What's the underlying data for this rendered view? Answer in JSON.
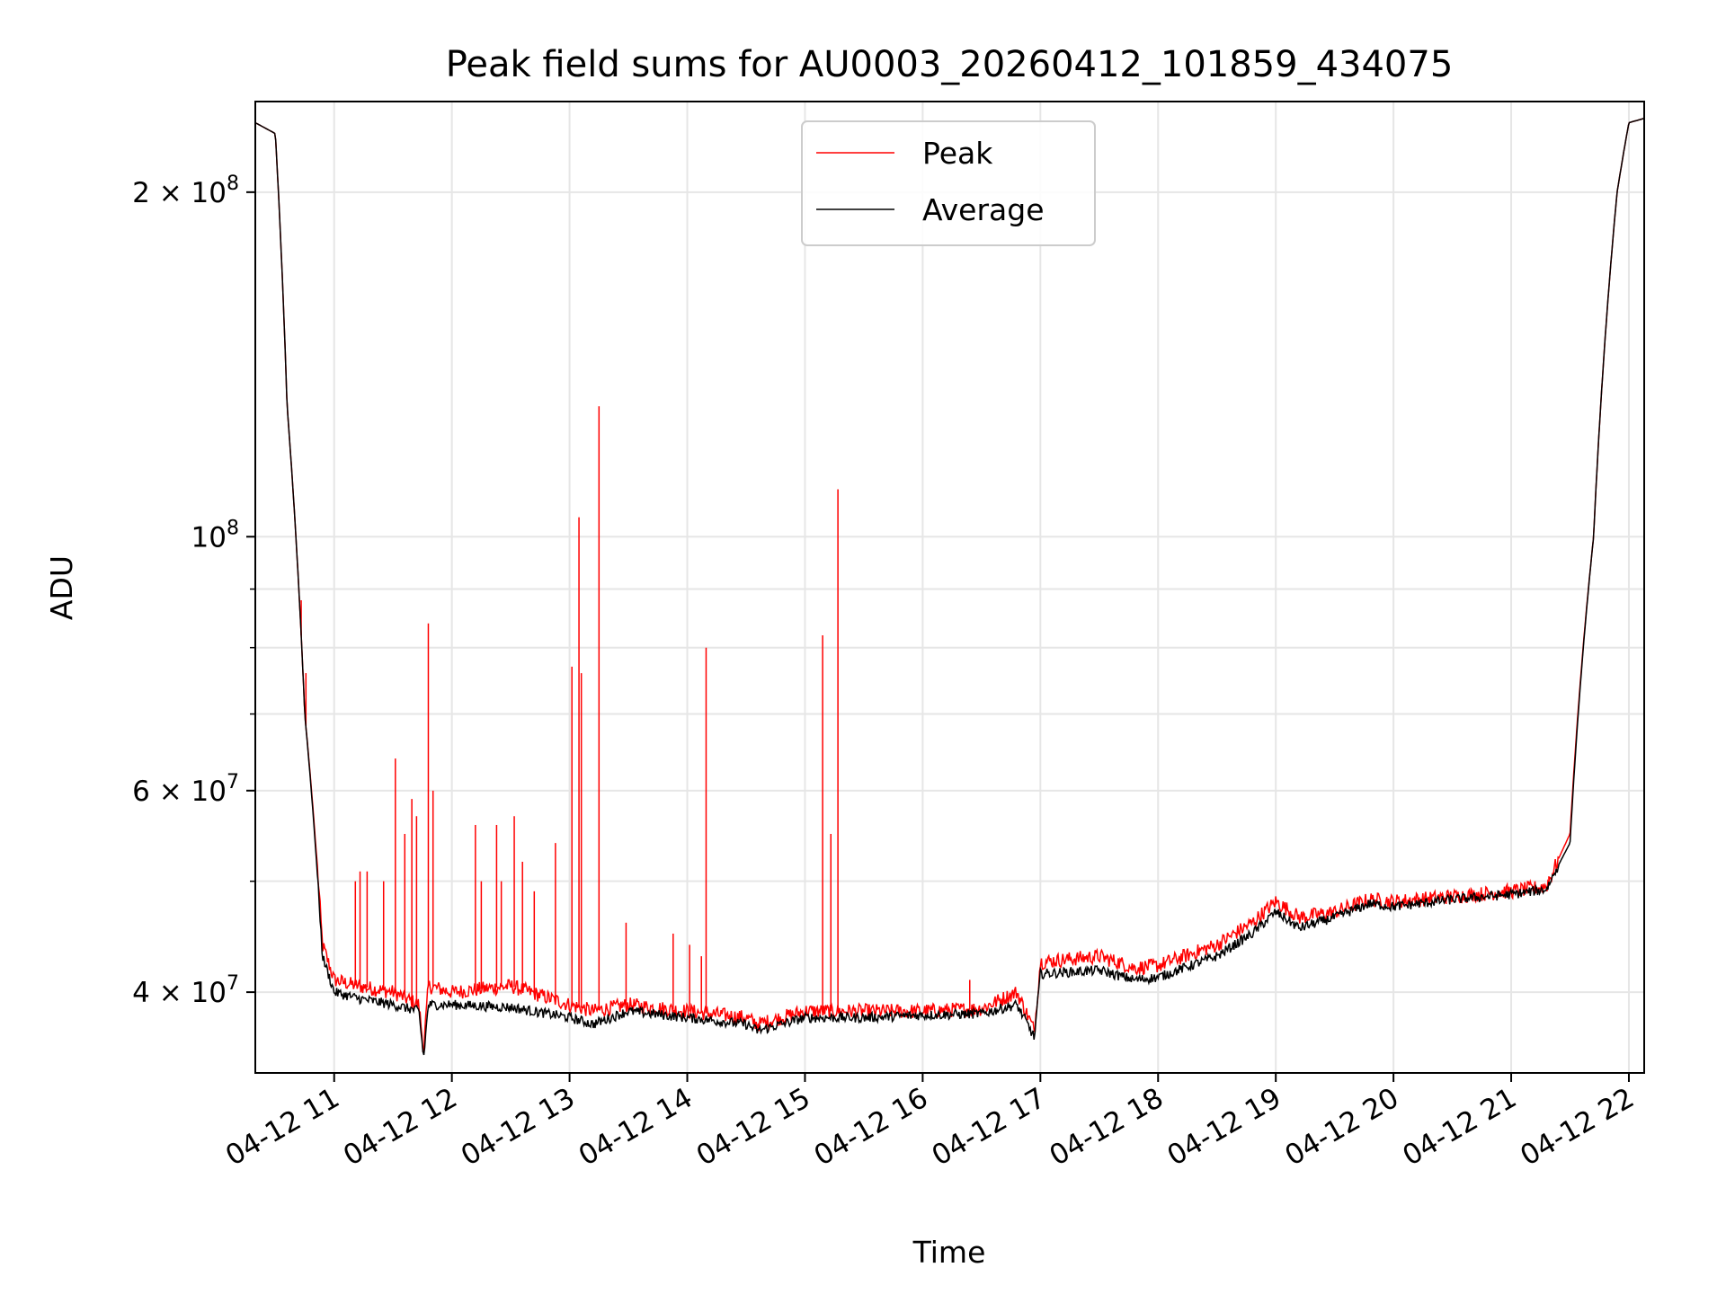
{
  "chart_data": {
    "type": "line",
    "title": "Peak field sums for AU0003_20260412_101859_434075",
    "xlabel": "Time",
    "ylabel": "ADU",
    "yscale": "log",
    "ylim": [
      34000000,
      240000000
    ],
    "xlim": [
      10.33,
      22.13
    ],
    "grid": true,
    "legend_position": "upper center",
    "x_ticks": [
      {
        "value": 11,
        "label": "04-12 11"
      },
      {
        "value": 12,
        "label": "04-12 12"
      },
      {
        "value": 13,
        "label": "04-12 13"
      },
      {
        "value": 14,
        "label": "04-12 14"
      },
      {
        "value": 15,
        "label": "04-12 15"
      },
      {
        "value": 16,
        "label": "04-12 16"
      },
      {
        "value": 17,
        "label": "04-12 17"
      },
      {
        "value": 18,
        "label": "04-12 18"
      },
      {
        "value": 19,
        "label": "04-12 19"
      },
      {
        "value": 20,
        "label": "04-12 20"
      },
      {
        "value": 21,
        "label": "04-12 21"
      },
      {
        "value": 22,
        "label": "04-12 22"
      }
    ],
    "y_major_ticks": [
      {
        "value": 40000000,
        "mantissa": "4",
        "times": "×",
        "base": "10",
        "exp": "7"
      },
      {
        "value": 60000000,
        "mantissa": "6",
        "times": "×",
        "base": "10",
        "exp": "7"
      },
      {
        "value": 100000000,
        "mantissa": "",
        "times": "",
        "base": "10",
        "exp": "8"
      },
      {
        "value": 200000000,
        "mantissa": "2",
        "times": "×",
        "base": "10",
        "exp": "8"
      }
    ],
    "y_minor_ticks": [
      50000000,
      70000000,
      80000000,
      90000000
    ],
    "series": [
      {
        "name": "Peak",
        "color": "#ff0000",
        "x": [
          10.33,
          10.5,
          10.6,
          10.75,
          10.9,
          11.0,
          11.2,
          11.5,
          11.72,
          11.76,
          11.8,
          12.0,
          12.5,
          13.0,
          13.2,
          13.5,
          14.0,
          14.5,
          14.6,
          15.0,
          15.5,
          16.0,
          16.5,
          16.8,
          16.95,
          17.0,
          17.5,
          17.8,
          18.0,
          18.5,
          18.8,
          19.0,
          19.2,
          19.5,
          19.8,
          20.0,
          20.5,
          21.0,
          21.3,
          21.5,
          21.7,
          21.9,
          22.0,
          22.13
        ],
        "y": [
          230000000,
          225000000,
          130000000,
          70000000,
          44000000,
          41000000,
          40500000,
          40000000,
          39000000,
          35500000,
          40500000,
          40000000,
          40500000,
          39000000,
          38500000,
          39000000,
          38500000,
          38000000,
          37500000,
          38500000,
          38500000,
          38500000,
          38700000,
          40000000,
          37000000,
          42500000,
          43000000,
          42000000,
          42200000,
          44000000,
          46000000,
          48000000,
          46500000,
          47000000,
          48200000,
          48000000,
          48500000,
          49000000,
          49500000,
          55000000,
          100000000,
          200000000,
          230000000,
          232000000
        ],
        "spikes": [
          {
            "x": 10.72,
            "y": 88000000
          },
          {
            "x": 10.76,
            "y": 76000000
          },
          {
            "x": 11.18,
            "y": 50000000
          },
          {
            "x": 11.22,
            "y": 51000000
          },
          {
            "x": 11.28,
            "y": 51000000
          },
          {
            "x": 11.42,
            "y": 50000000
          },
          {
            "x": 11.52,
            "y": 64000000
          },
          {
            "x": 11.6,
            "y": 55000000
          },
          {
            "x": 11.66,
            "y": 59000000
          },
          {
            "x": 11.7,
            "y": 57000000
          },
          {
            "x": 11.8,
            "y": 84000000
          },
          {
            "x": 11.84,
            "y": 60000000
          },
          {
            "x": 12.2,
            "y": 56000000
          },
          {
            "x": 12.25,
            "y": 50000000
          },
          {
            "x": 12.38,
            "y": 56000000
          },
          {
            "x": 12.42,
            "y": 50000000
          },
          {
            "x": 12.53,
            "y": 57000000
          },
          {
            "x": 12.6,
            "y": 52000000
          },
          {
            "x": 12.7,
            "y": 49000000
          },
          {
            "x": 12.88,
            "y": 54000000
          },
          {
            "x": 13.02,
            "y": 77000000
          },
          {
            "x": 13.08,
            "y": 104000000
          },
          {
            "x": 13.1,
            "y": 76000000
          },
          {
            "x": 13.25,
            "y": 130000000
          },
          {
            "x": 13.48,
            "y": 46000000
          },
          {
            "x": 13.88,
            "y": 45000000
          },
          {
            "x": 14.02,
            "y": 44000000
          },
          {
            "x": 14.12,
            "y": 43000000
          },
          {
            "x": 14.16,
            "y": 80000000
          },
          {
            "x": 15.15,
            "y": 82000000
          },
          {
            "x": 15.22,
            "y": 55000000
          },
          {
            "x": 15.28,
            "y": 110000000
          },
          {
            "x": 16.4,
            "y": 41000000
          },
          {
            "x": 21.32,
            "y": 50500000
          }
        ]
      },
      {
        "name": "Average",
        "color": "#000000",
        "x": [
          10.33,
          10.5,
          10.6,
          10.75,
          10.9,
          11.0,
          11.2,
          11.5,
          11.72,
          11.76,
          11.8,
          12.0,
          12.5,
          13.0,
          13.2,
          13.5,
          14.0,
          14.5,
          14.6,
          15.0,
          15.5,
          16.0,
          16.5,
          16.8,
          16.95,
          17.0,
          17.5,
          17.8,
          18.0,
          18.5,
          18.8,
          19.0,
          19.2,
          19.5,
          19.8,
          20.0,
          20.5,
          21.0,
          21.3,
          21.5,
          21.7,
          21.9,
          22.0,
          22.13
        ],
        "y": [
          230000000,
          225000000,
          130000000,
          70000000,
          43000000,
          40000000,
          39500000,
          39000000,
          38500000,
          35000000,
          39000000,
          39000000,
          38800000,
          38000000,
          37500000,
          38500000,
          38000000,
          37500000,
          37000000,
          38000000,
          38000000,
          38200000,
          38300000,
          39000000,
          36500000,
          41500000,
          41800000,
          41000000,
          41200000,
          43000000,
          45000000,
          47000000,
          45500000,
          46500000,
          47800000,
          47500000,
          48200000,
          48700000,
          49200000,
          54000000,
          100000000,
          200000000,
          230000000,
          232000000
        ]
      }
    ]
  }
}
